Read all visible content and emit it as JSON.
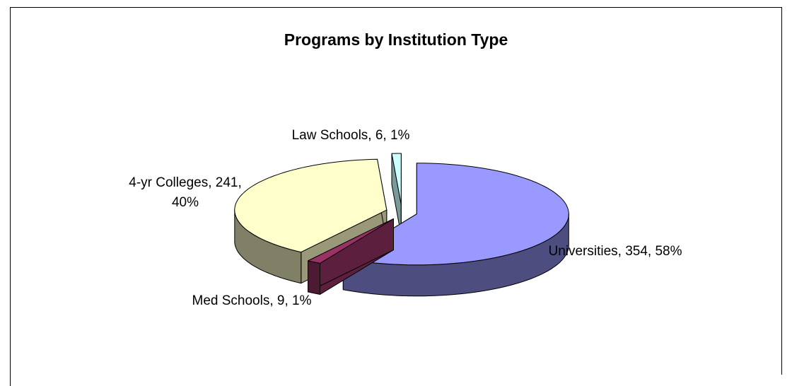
{
  "chart_data": {
    "type": "pie3d",
    "title": "Programs by Institution Type",
    "categories": [
      "Universities",
      "Med Schools",
      "4-yr Colleges",
      "Law Schools"
    ],
    "values": [
      354,
      9,
      241,
      6
    ],
    "value_labels": [
      "Universities, 354, 58%",
      "Med Schools, 9, 1%",
      "4-yr Colleges, 241, 40%",
      "Law Schools, 6, 1%"
    ],
    "colors": [
      "#9999ff",
      "#993366",
      "#ffffcc",
      "#ccffff"
    ]
  }
}
